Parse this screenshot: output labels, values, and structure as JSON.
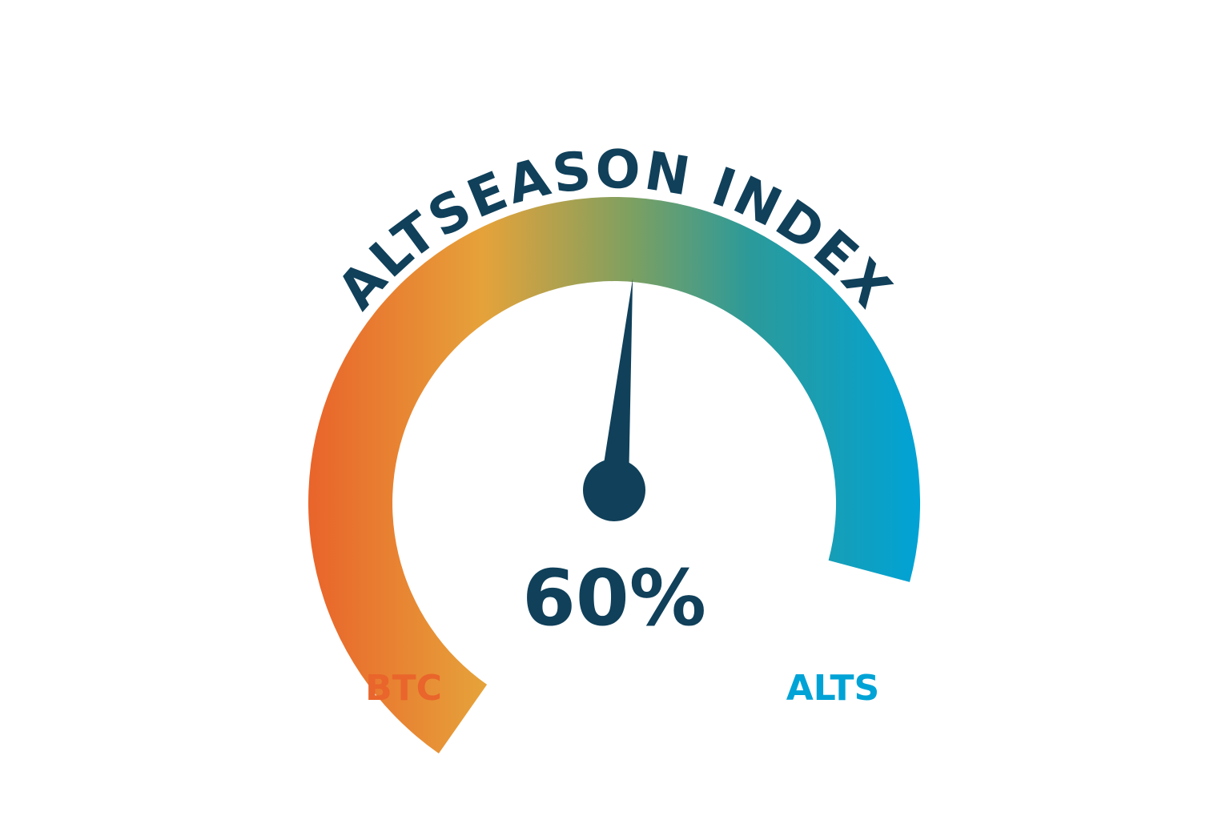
{
  "chart_data": {
    "type": "gauge",
    "title": "ALTSEASON INDEX",
    "value": 60,
    "value_label": "60%",
    "min": 0,
    "max": 100,
    "min_label": "BTC",
    "max_label": "ALTS"
  },
  "colors": {
    "btc": "#e9652b",
    "mid_warm": "#e6a23a",
    "mid_green": "#7fa060",
    "teal": "#2b9a9a",
    "alts": "#00a3d6",
    "ink": "#10405a"
  }
}
